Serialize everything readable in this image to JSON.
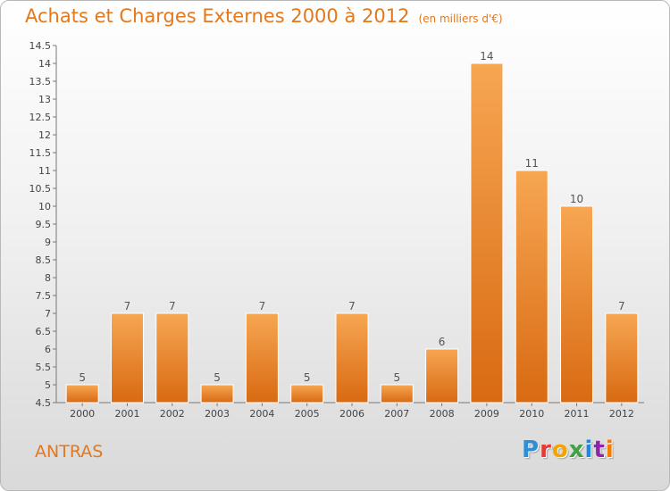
{
  "header": {
    "title": "Achats et Charges Externes 2000 à 2012",
    "subtitle": "(en milliers d'€)"
  },
  "footer": {
    "commune": "ANTRAS",
    "logo_letters": [
      {
        "ch": "P",
        "color": "#2f8fd6"
      },
      {
        "ch": "r",
        "color": "#e53935"
      },
      {
        "ch": "o",
        "color": "#f4a300"
      },
      {
        "ch": "x",
        "color": "#43a047"
      },
      {
        "ch": "i",
        "color": "#1e88e5"
      },
      {
        "ch": "t",
        "color": "#8e24aa"
      },
      {
        "ch": "i",
        "color": "#f57c00"
      }
    ]
  },
  "chart_data": {
    "type": "bar",
    "title": "Achats et Charges Externes 2000 à 2012",
    "subtitle": "(en milliers d'€)",
    "categories": [
      "2000",
      "2001",
      "2002",
      "2003",
      "2004",
      "2005",
      "2006",
      "2007",
      "2008",
      "2009",
      "2010",
      "2011",
      "2012"
    ],
    "values": [
      5,
      7,
      7,
      5,
      7,
      5,
      7,
      5,
      6,
      14,
      11,
      10,
      7
    ],
    "ylim": [
      4.5,
      14.5
    ],
    "ytick_step": 0.5,
    "grid": false,
    "bar_color_top": "#f7a652",
    "bar_color_bottom": "#d86a12"
  }
}
